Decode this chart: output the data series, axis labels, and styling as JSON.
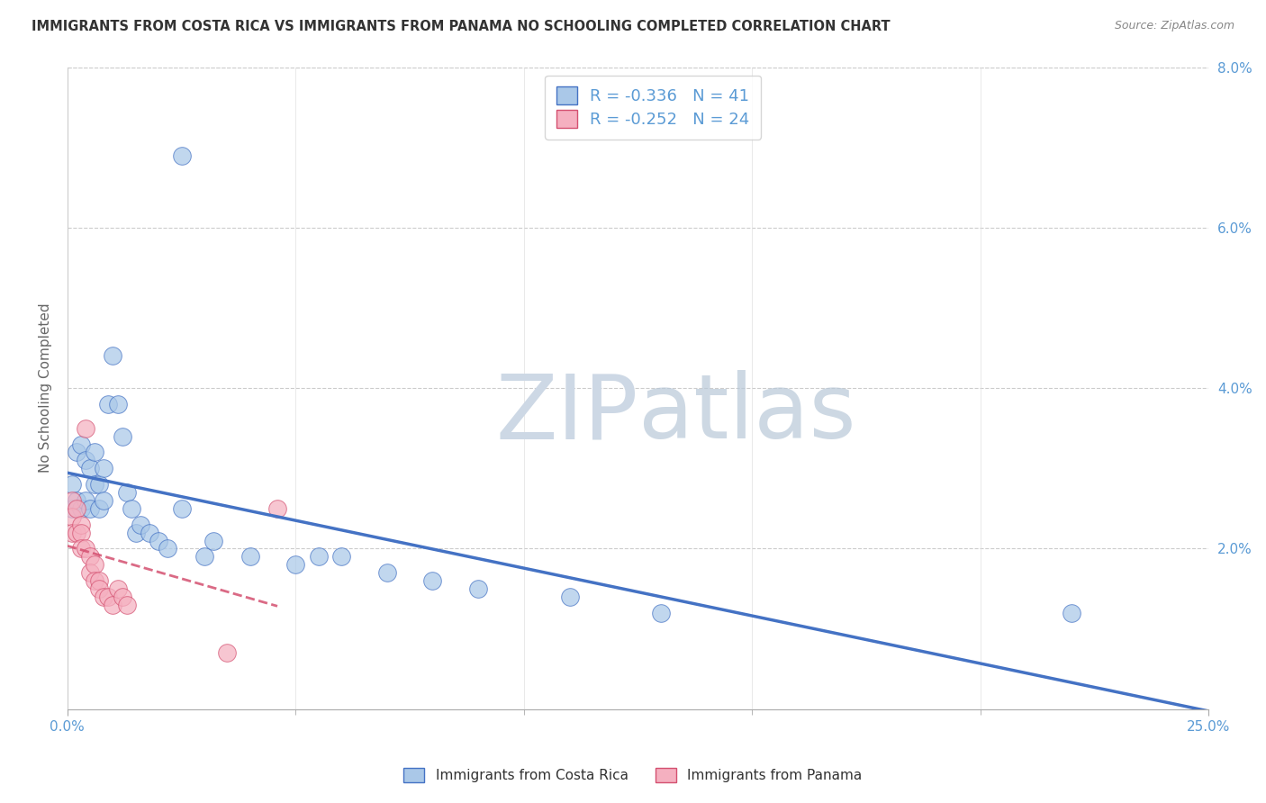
{
  "title": "IMMIGRANTS FROM COSTA RICA VS IMMIGRANTS FROM PANAMA NO SCHOOLING COMPLETED CORRELATION CHART",
  "source": "Source: ZipAtlas.com",
  "ylabel_left": "No Schooling Completed",
  "xlim": [
    0.0,
    0.25
  ],
  "ylim": [
    0.0,
    0.08
  ],
  "xtick_positions": [
    0.0,
    0.25
  ],
  "xtick_labels": [
    "0.0%",
    "25.0%"
  ],
  "yticks_right": [
    0.02,
    0.04,
    0.06,
    0.08
  ],
  "ytick_labels_right": [
    "2.0%",
    "4.0%",
    "6.0%",
    "8.0%"
  ],
  "legend_entries": [
    {
      "label": "Immigrants from Costa Rica",
      "color": "#aac8e8",
      "border_color": "#4472c4",
      "R": -0.336,
      "N": 41
    },
    {
      "label": "Immigrants from Panama",
      "color": "#f5b0c0",
      "border_color": "#d45070",
      "R": -0.252,
      "N": 24
    }
  ],
  "costa_rica_color": "#aac8e8",
  "costa_rica_line_color": "#4472c4",
  "panama_color": "#f5b0c0",
  "panama_line_color": "#d45070",
  "watermark_color": "#cdd8e5",
  "background_color": "#ffffff",
  "grid_color": "#cccccc",
  "tick_label_color": "#5b9bd5",
  "cr_x": [
    0.001,
    0.001,
    0.002,
    0.002,
    0.003,
    0.003,
    0.004,
    0.004,
    0.005,
    0.005,
    0.006,
    0.006,
    0.007,
    0.007,
    0.008,
    0.008,
    0.009,
    0.01,
    0.011,
    0.012,
    0.013,
    0.014,
    0.015,
    0.016,
    0.018,
    0.02,
    0.022,
    0.025,
    0.03,
    0.032,
    0.04,
    0.05,
    0.055,
    0.06,
    0.07,
    0.08,
    0.09,
    0.11,
    0.13,
    0.22,
    0.025
  ],
  "cr_y": [
    0.025,
    0.028,
    0.026,
    0.032,
    0.025,
    0.033,
    0.026,
    0.031,
    0.025,
    0.03,
    0.028,
    0.032,
    0.025,
    0.028,
    0.026,
    0.03,
    0.038,
    0.044,
    0.038,
    0.034,
    0.027,
    0.025,
    0.022,
    0.023,
    0.022,
    0.021,
    0.02,
    0.025,
    0.019,
    0.021,
    0.019,
    0.018,
    0.019,
    0.019,
    0.017,
    0.016,
    0.015,
    0.014,
    0.012,
    0.012,
    0.069
  ],
  "pan_x": [
    0.001,
    0.001,
    0.001,
    0.002,
    0.002,
    0.003,
    0.003,
    0.003,
    0.004,
    0.004,
    0.005,
    0.005,
    0.006,
    0.006,
    0.007,
    0.007,
    0.008,
    0.009,
    0.01,
    0.011,
    0.012,
    0.013,
    0.035,
    0.046
  ],
  "pan_y": [
    0.026,
    0.024,
    0.022,
    0.025,
    0.022,
    0.023,
    0.022,
    0.02,
    0.035,
    0.02,
    0.019,
    0.017,
    0.018,
    0.016,
    0.016,
    0.015,
    0.014,
    0.014,
    0.013,
    0.015,
    0.014,
    0.013,
    0.007,
    0.025
  ]
}
